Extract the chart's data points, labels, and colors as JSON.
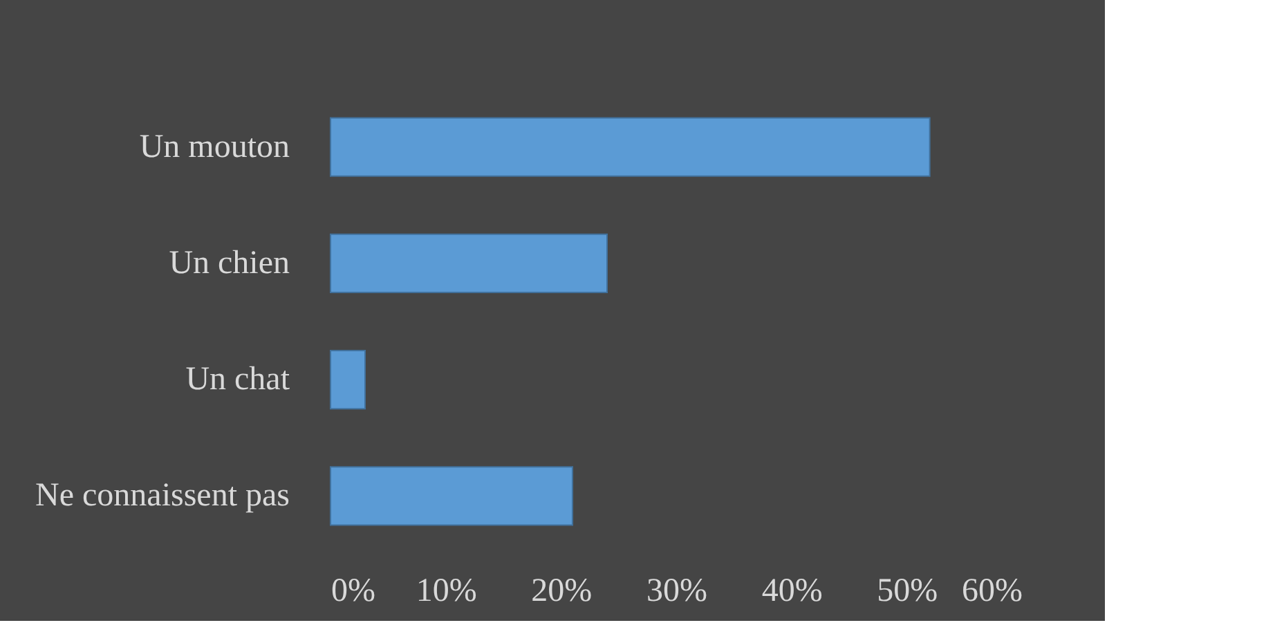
{
  "chart_data": {
    "type": "bar",
    "orientation": "horizontal",
    "categories": [
      "Un mouton",
      "Un chien",
      "Un chat",
      "Ne connaissent pas"
    ],
    "values": [
      52,
      24,
      3,
      21
    ],
    "color": "#5b9bd5",
    "xlim": [
      0,
      60
    ],
    "xticks": [
      {
        "value": 0,
        "label": "0%"
      },
      {
        "value": 10,
        "label": "10%"
      },
      {
        "value": 20,
        "label": "20%"
      },
      {
        "value": 30,
        "label": "30%"
      },
      {
        "value": 40,
        "label": "40%"
      },
      {
        "value": 50,
        "label": "50%"
      },
      {
        "value": 60,
        "label": "60%"
      }
    ],
    "grid": false
  }
}
